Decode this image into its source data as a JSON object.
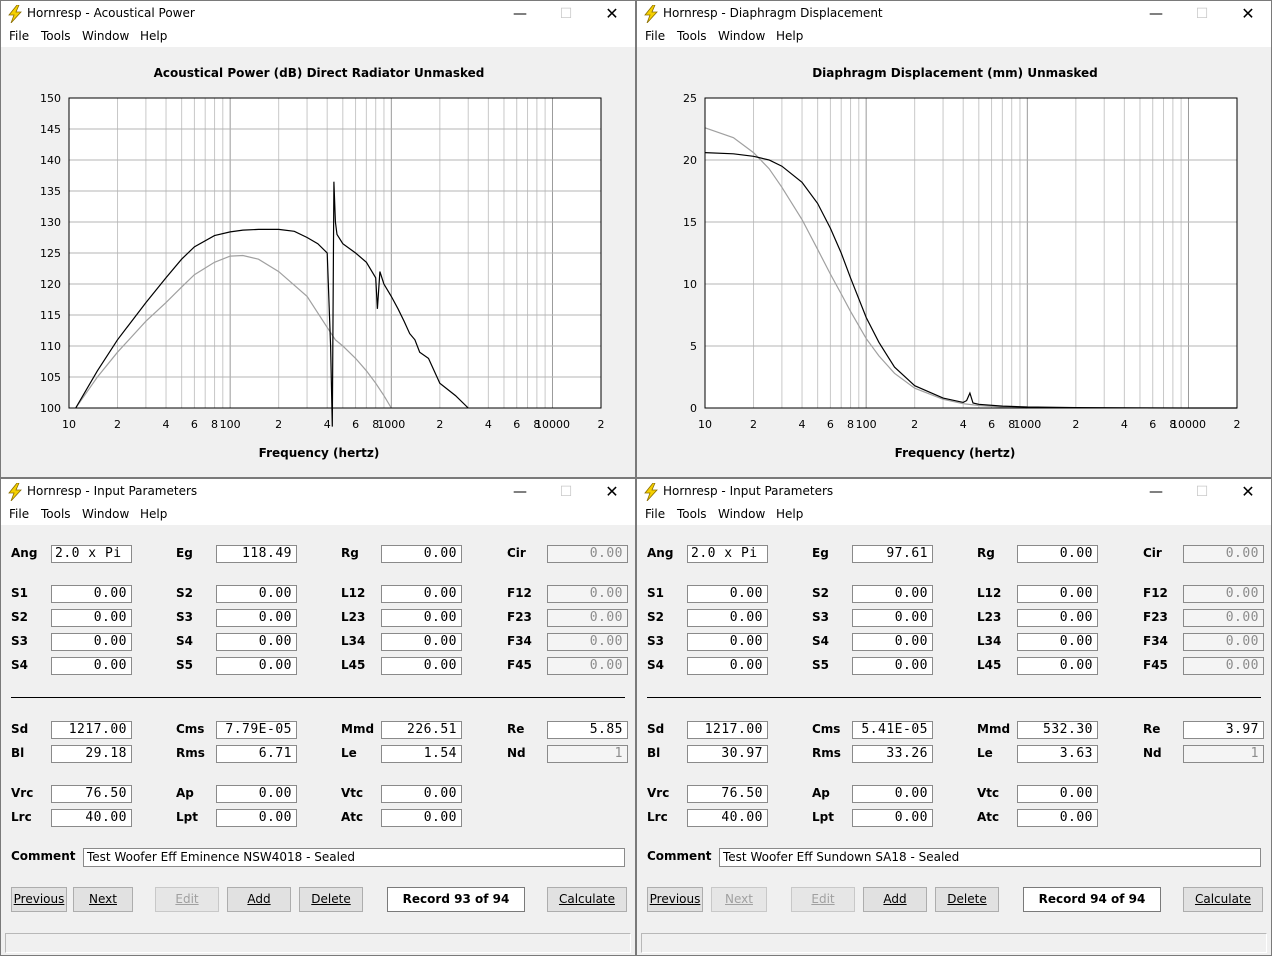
{
  "menu": [
    "File",
    "Tools",
    "Window",
    "Help"
  ],
  "ap": {
    "title": "Hornresp - Acoustical Power",
    "chart_title": "Acoustical Power (dB)   Direct Radiator   Unmasked",
    "xlabel": "Frequency (hertz)",
    "yticks": [
      "150",
      "145",
      "140",
      "135",
      "130",
      "125",
      "120",
      "115",
      "110",
      "105",
      "100"
    ],
    "xticks": [
      "10",
      "2",
      "4",
      "6",
      "8",
      "100",
      "2",
      "4",
      "6",
      "8",
      "1000",
      "2",
      "4",
      "6",
      "8",
      "10000",
      "2"
    ],
    "chart_data": {
      "type": "line",
      "title": "Acoustical Power (dB)   Direct Radiator   Unmasked",
      "xlabel": "Frequency (hertz)",
      "ylabel": "",
      "xscale": "log",
      "xlim": [
        10,
        20000
      ],
      "ylim": [
        100,
        150
      ],
      "series": [
        {
          "color": "#000000",
          "x": [
            11,
            15,
            20,
            30,
            40,
            50,
            60,
            80,
            100,
            120,
            150,
            200,
            250,
            300,
            350,
            400,
            420,
            430,
            440,
            450,
            460,
            500,
            600,
            700,
            800,
            820,
            850,
            900,
            1000,
            1100,
            1200,
            1300,
            1400,
            1500,
            1700,
            2000,
            2500,
            3000
          ],
          "y": [
            100,
            106,
            111,
            117,
            121,
            124,
            126,
            127.8,
            128.4,
            128.7,
            128.8,
            128.8,
            128.5,
            127.5,
            126.5,
            125,
            110,
            97,
            136.5,
            130,
            128,
            126.5,
            125,
            123.5,
            121,
            116,
            122,
            120,
            118,
            116,
            114,
            112,
            111,
            109,
            108,
            104,
            102,
            100
          ]
        },
        {
          "color": "#a0a0a0",
          "x": [
            11,
            15,
            20,
            30,
            40,
            50,
            60,
            80,
            100,
            120,
            150,
            200,
            300,
            400,
            450,
            500,
            600,
            700,
            800,
            900,
            1000
          ],
          "y": [
            100,
            105,
            109,
            114,
            117,
            119.5,
            121.5,
            123.5,
            124.5,
            124.6,
            124,
            122,
            118,
            113,
            111,
            110,
            108,
            106,
            104,
            102,
            100
          ]
        }
      ]
    }
  },
  "dd": {
    "title": "Hornresp - Diaphragm Displacement",
    "chart_title": "Diaphragm Displacement (mm)   Unmasked",
    "xlabel": "Frequency (hertz)",
    "yticks": [
      "25",
      "20",
      "15",
      "10",
      "5",
      "0"
    ],
    "xticks": [
      "10",
      "2",
      "4",
      "6",
      "8",
      "100",
      "2",
      "4",
      "6",
      "8",
      "1000",
      "2",
      "4",
      "6",
      "8",
      "10000",
      "2"
    ],
    "chart_data": {
      "type": "line",
      "title": "Diaphragm Displacement (mm)   Unmasked",
      "xlabel": "Frequency (hertz)",
      "ylabel": "",
      "xscale": "log",
      "xlim": [
        10,
        20000
      ],
      "ylim": [
        0,
        25
      ],
      "series": [
        {
          "color": "#000000",
          "x": [
            10,
            15,
            20,
            25,
            30,
            40,
            50,
            60,
            70,
            80,
            100,
            120,
            150,
            200,
            300,
            400,
            420,
            440,
            460,
            500,
            700,
            1000,
            2000,
            5000,
            10000,
            20000
          ],
          "y": [
            20.6,
            20.5,
            20.3,
            20.0,
            19.5,
            18.2,
            16.5,
            14.5,
            12.5,
            10.5,
            7.3,
            5.3,
            3.3,
            1.8,
            0.8,
            0.45,
            0.6,
            1.2,
            0.4,
            0.3,
            0.15,
            0.08,
            0.03,
            0.01,
            0,
            0
          ]
        },
        {
          "color": "#a0a0a0",
          "x": [
            10,
            15,
            20,
            25,
            30,
            40,
            50,
            60,
            70,
            80,
            100,
            120,
            150,
            200,
            300,
            400,
            500,
            700,
            1000
          ],
          "y": [
            22.6,
            21.8,
            20.6,
            19.3,
            17.8,
            15.2,
            12.8,
            10.8,
            9.2,
            7.8,
            5.6,
            4.2,
            2.8,
            1.6,
            0.7,
            0.35,
            0.2,
            0.08,
            0
          ]
        }
      ]
    }
  },
  "ip1": {
    "title": "Hornresp - Input Parameters",
    "fields": {
      "Ang": "2.0 x Pi",
      "Eg": "118.49",
      "Rg": "0.00",
      "Cir": "0.00",
      "S1": "0.00",
      "S2a": "0.00",
      "L12": "0.00",
      "F12": "0.00",
      "S2": "0.00",
      "S3a": "0.00",
      "L23": "0.00",
      "F23": "0.00",
      "S3": "0.00",
      "S4a": "0.00",
      "L34": "0.00",
      "F34": "0.00",
      "S4": "0.00",
      "S5": "0.00",
      "L45": "0.00",
      "F45": "0.00",
      "Sd": "1217.00",
      "Cms": "7.79E-05",
      "Mmd": "226.51",
      "Re": "5.85",
      "Bl": "29.18",
      "Rms": "6.71",
      "Le": "1.54",
      "Nd": "1",
      "Vrc": "76.50",
      "Ap": "0.00",
      "Vtc": "0.00",
      "Lrc": "40.00",
      "Lpt": "0.00",
      "Atc": "0.00"
    },
    "comment_label": "Comment",
    "comment": "Test Woofer Eff Eminence NSW4018 - Sealed",
    "buttons": {
      "previous": "Previous",
      "next": "Next",
      "edit": "Edit",
      "add": "Add",
      "delete": "Delete",
      "calculate": "Calculate"
    },
    "record": "Record 93 of 94"
  },
  "ip2": {
    "title": "Hornresp - Input Parameters",
    "fields": {
      "Ang": "2.0 x Pi",
      "Eg": "97.61",
      "Rg": "0.00",
      "Cir": "0.00",
      "S1": "0.00",
      "S2a": "0.00",
      "L12": "0.00",
      "F12": "0.00",
      "S2": "0.00",
      "S3a": "0.00",
      "L23": "0.00",
      "F23": "0.00",
      "S3": "0.00",
      "S4a": "0.00",
      "L34": "0.00",
      "F34": "0.00",
      "S4": "0.00",
      "S5": "0.00",
      "L45": "0.00",
      "F45": "0.00",
      "Sd": "1217.00",
      "Cms": "5.41E-05",
      "Mmd": "532.30",
      "Re": "3.97",
      "Bl": "30.97",
      "Rms": "33.26",
      "Le": "3.63",
      "Nd": "1",
      "Vrc": "76.50",
      "Ap": "0.00",
      "Vtc": "0.00",
      "Lrc": "40.00",
      "Lpt": "0.00",
      "Atc": "0.00"
    },
    "comment_label": "Comment",
    "comment": "Test Woofer Eff Sundown SA18 - Sealed",
    "buttons": {
      "previous": "Previous",
      "next": "Next",
      "edit": "Edit",
      "add": "Add",
      "delete": "Delete",
      "calculate": "Calculate"
    },
    "record": "Record 94 of 94"
  }
}
